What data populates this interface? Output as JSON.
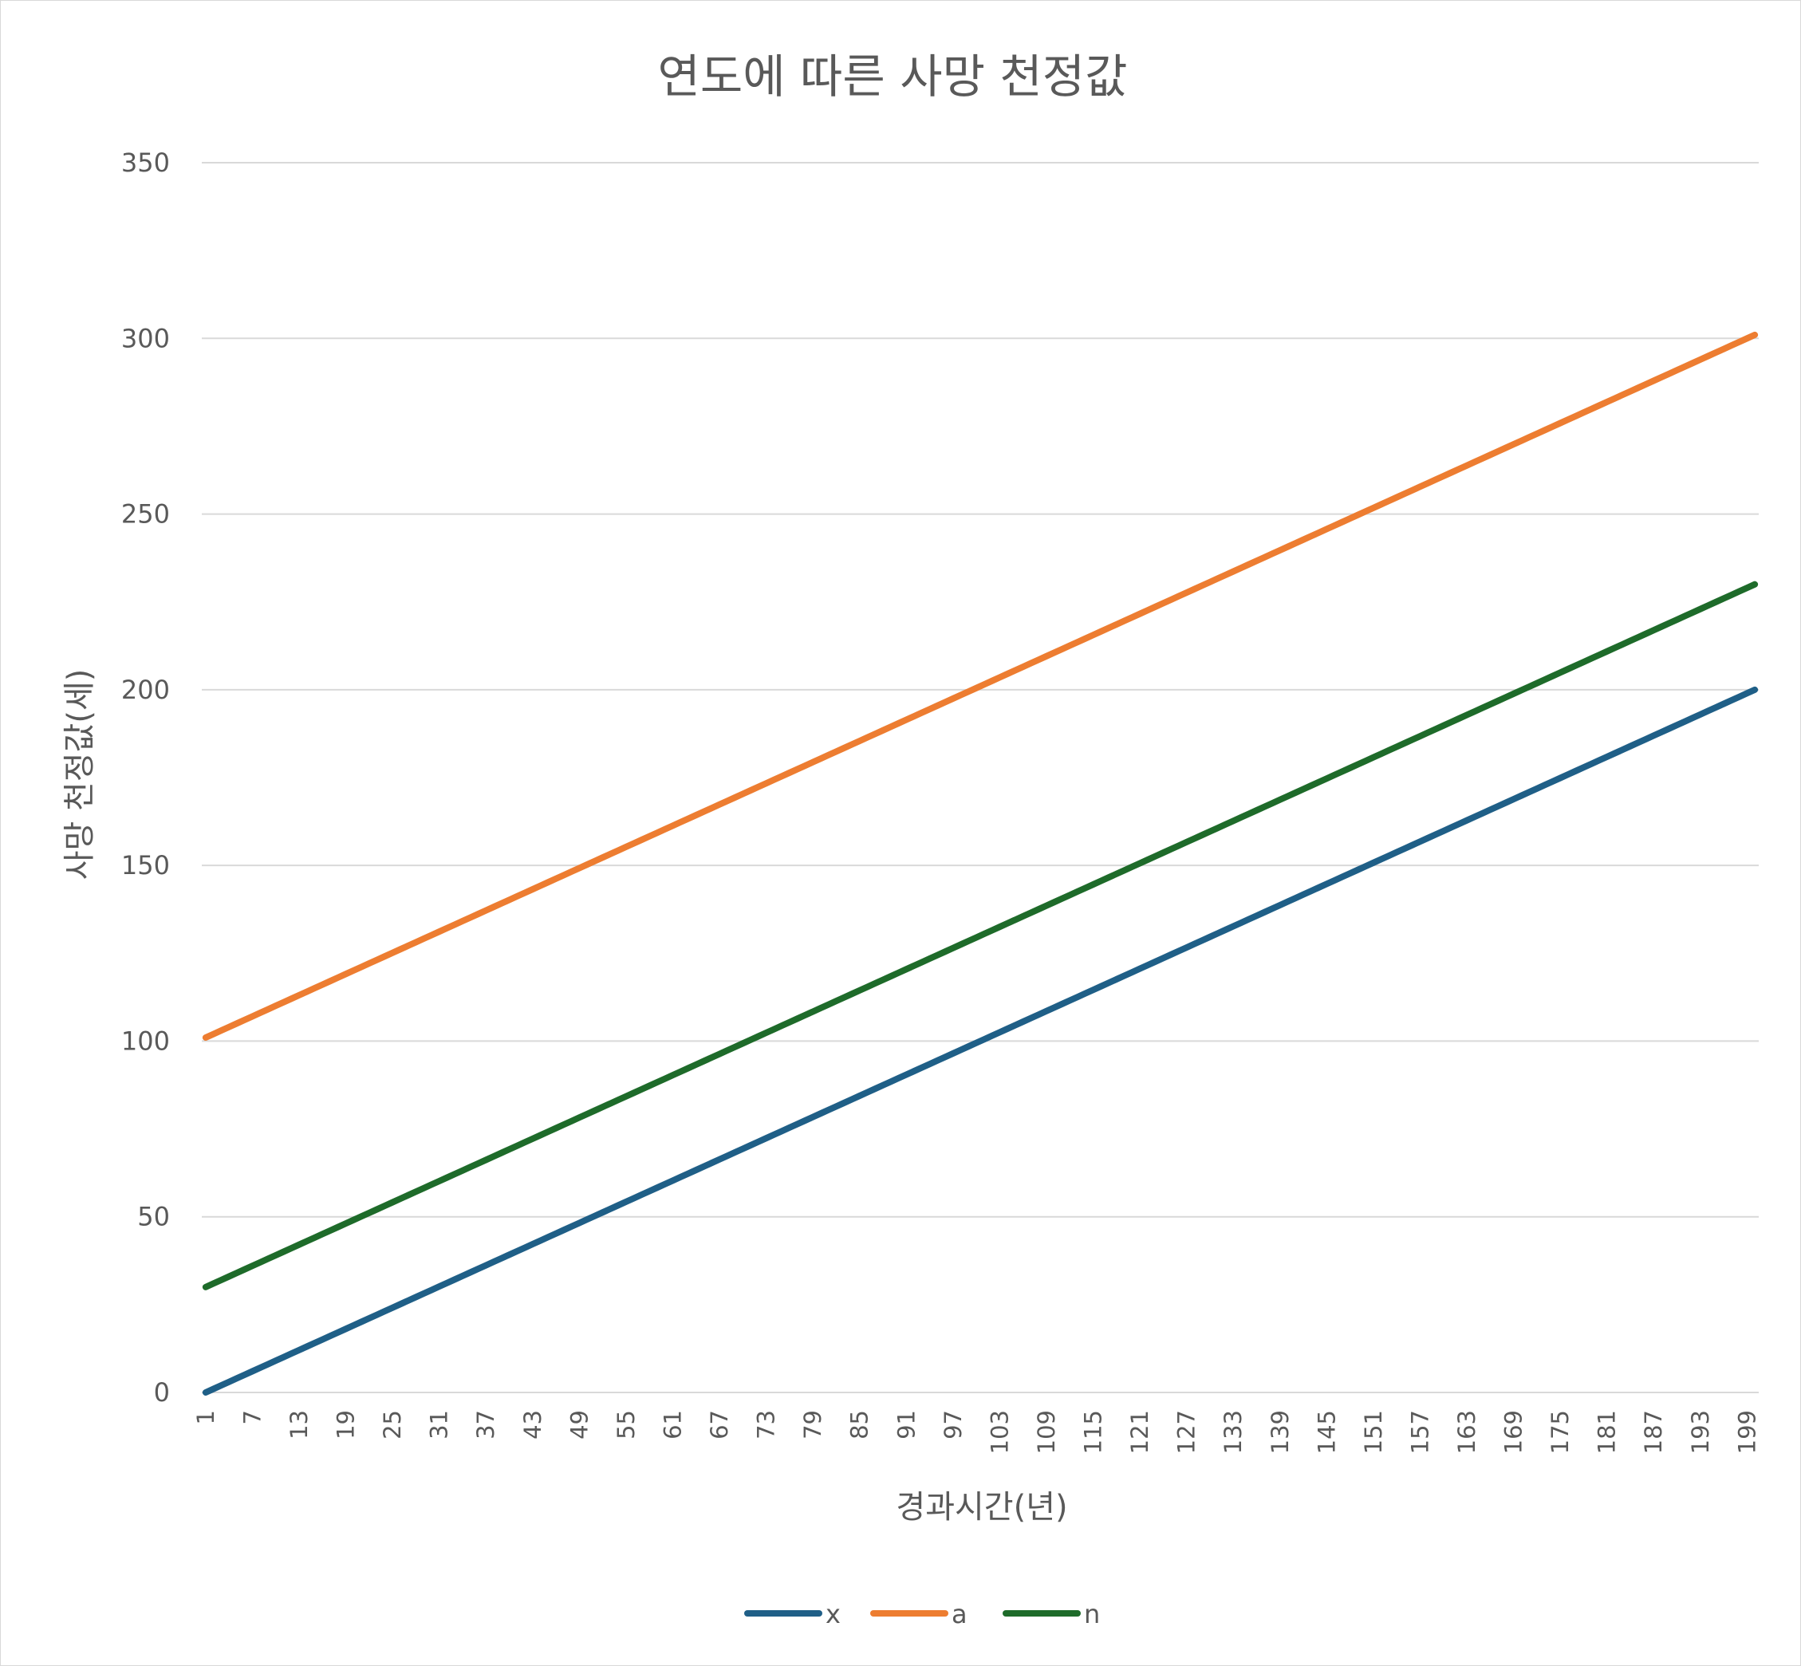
{
  "chart_data": {
    "type": "line",
    "title": "연도에 따른 사망 천정값",
    "xlabel": "경과시간(년)",
    "ylabel": "사망 천정값(세)",
    "x": {
      "start": 1,
      "end": 200
    },
    "x_tick_labels": [
      "1",
      "7",
      "13",
      "19",
      "25",
      "31",
      "37",
      "43",
      "49",
      "55",
      "61",
      "67",
      "73",
      "79",
      "85",
      "91",
      "97",
      "103",
      "109",
      "115",
      "121",
      "127",
      "133",
      "139",
      "145",
      "151",
      "157",
      "163",
      "169",
      "175",
      "181",
      "187",
      "193",
      "199"
    ],
    "ylim": [
      0,
      350
    ],
    "y_ticks": [
      0,
      50,
      100,
      150,
      200,
      250,
      300,
      350
    ],
    "grid": true,
    "legend_position": "bottom",
    "series": [
      {
        "name": "x",
        "color": "#1f5f87",
        "start_value": 0,
        "end_value": 200
      },
      {
        "name": "a",
        "color": "#ed7d31",
        "start_value": 101,
        "end_value": 301
      },
      {
        "name": "n",
        "color": "#1e6b2a",
        "start_value": 30,
        "end_value": 230
      }
    ]
  }
}
